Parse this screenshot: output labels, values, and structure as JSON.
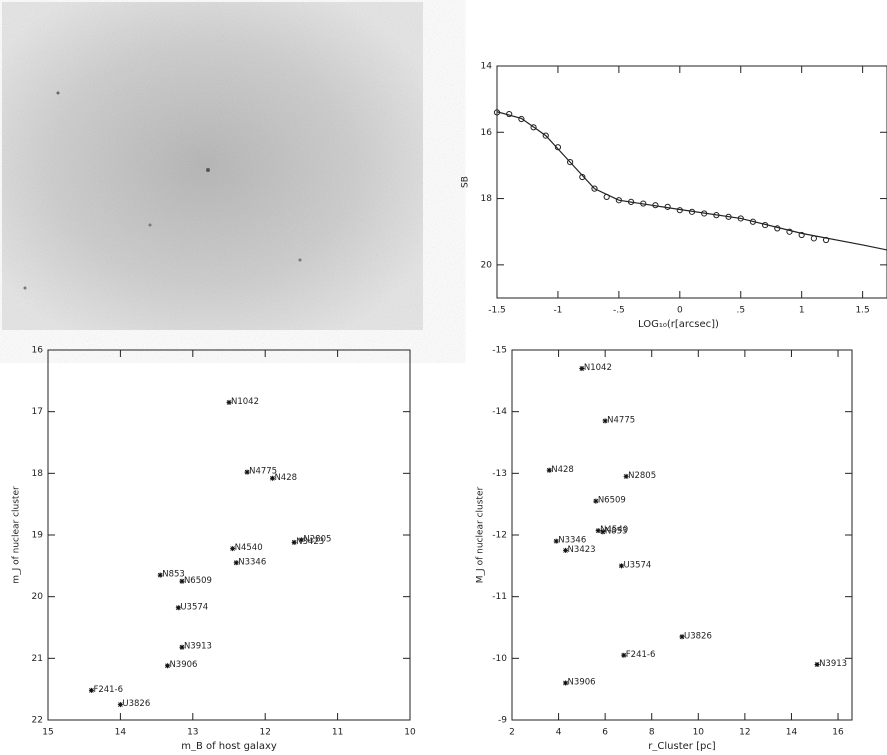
{
  "chart_data": [
    {
      "type": "line",
      "ylabel": "SB",
      "xlabel": "LOG₁₀(r[arcsec])",
      "xlim": [
        -1.5,
        1.7
      ],
      "ylim": [
        21,
        14
      ],
      "xticks": [
        {
          "value": -1.5,
          "label": "-1.5"
        },
        -1,
        {
          "value": -0.5,
          "label": "-.5"
        },
        0,
        {
          "value": 0.5,
          "label": ".5"
        },
        1,
        1.5
      ],
      "yticks": [
        14,
        16,
        18,
        20
      ],
      "series": [
        {
          "marker": "circle",
          "color": "#222222",
          "x": [
            -1.5,
            -1.4,
            -1.3,
            -1.2,
            -1.1,
            -1.0,
            -0.9,
            -0.8,
            -0.7,
            -0.6,
            -0.5,
            -0.4,
            -0.3,
            -0.2,
            -0.1,
            0,
            0.1,
            0.2,
            0.3,
            0.4,
            0.5,
            0.6,
            0.7,
            0.8,
            0.9,
            1.0,
            1.1,
            1.2
          ],
          "values": [
            15.4,
            15.45,
            15.6,
            15.85,
            16.1,
            16.45,
            16.9,
            17.35,
            17.7,
            17.95,
            18.05,
            18.1,
            18.15,
            18.2,
            18.25,
            18.35,
            18.4,
            18.45,
            18.5,
            18.55,
            18.6,
            18.7,
            18.8,
            18.9,
            19.0,
            19.1,
            19.2,
            19.25
          ]
        },
        {
          "marker": "none",
          "color": "#222222",
          "x": [
            -1.5,
            -1.3,
            -1.1,
            -0.9,
            -0.7,
            -0.5,
            0,
            0.5,
            1.0,
            1.5,
            1.7
          ],
          "values": [
            15.38,
            15.58,
            16.1,
            16.9,
            17.7,
            18.05,
            18.33,
            18.6,
            19.05,
            19.4,
            19.55
          ]
        }
      ]
    },
    {
      "type": "scatter",
      "ylabel": "m_J of nuclear cluster",
      "xlabel": "m_B of host galaxy",
      "xlim": [
        15,
        10
      ],
      "ylim": [
        22,
        16
      ],
      "xticks": [
        15,
        14,
        13,
        12,
        11,
        10
      ],
      "yticks": [
        16,
        17,
        18,
        19,
        20,
        21,
        22
      ],
      "color": "#111111",
      "labels": [
        "N1042",
        "N4775",
        "N428",
        "N4540",
        "N2805",
        "N3423",
        "N3346",
        "N853",
        "N6509",
        "U3574",
        "N3913",
        "N3906",
        "F241-6",
        "U3826"
      ],
      "x": [
        12.5,
        12.25,
        11.9,
        12.45,
        11.5,
        11.6,
        12.4,
        13.45,
        13.15,
        13.2,
        13.15,
        13.35,
        14.4,
        14.0
      ],
      "values": [
        16.85,
        17.98,
        18.08,
        19.22,
        19.08,
        19.12,
        19.45,
        19.65,
        19.75,
        20.18,
        20.82,
        21.12,
        21.52,
        21.75
      ]
    },
    {
      "type": "scatter",
      "ylabel": "M_J of nuclear cluster",
      "xlabel": "r_Cluster [pc]",
      "xlim": [
        2,
        16.6
      ],
      "ylim": [
        -9,
        -15
      ],
      "xticks": [
        2,
        4,
        6,
        8,
        10,
        12,
        14,
        16
      ],
      "yticks": [
        -15,
        -14,
        -13,
        -12,
        -11,
        -10,
        -9
      ],
      "color": "#111111",
      "labels": [
        "N1042",
        "N4775",
        "N428",
        "N2805",
        "N6509",
        "N4540",
        "N853",
        "N3346",
        "N3423",
        "U3574",
        "U3826",
        "F241-6",
        "N3906",
        "N3913"
      ],
      "x": [
        5.0,
        6.0,
        3.6,
        6.9,
        5.6,
        5.7,
        5.9,
        3.9,
        4.3,
        6.7,
        9.3,
        6.8,
        4.3,
        15.1
      ],
      "values": [
        -14.7,
        -13.85,
        -13.05,
        -12.95,
        -12.55,
        -12.07,
        -12.05,
        -11.9,
        -11.75,
        -11.5,
        -10.35,
        -10.05,
        -9.6,
        -9.9
      ]
    }
  ]
}
